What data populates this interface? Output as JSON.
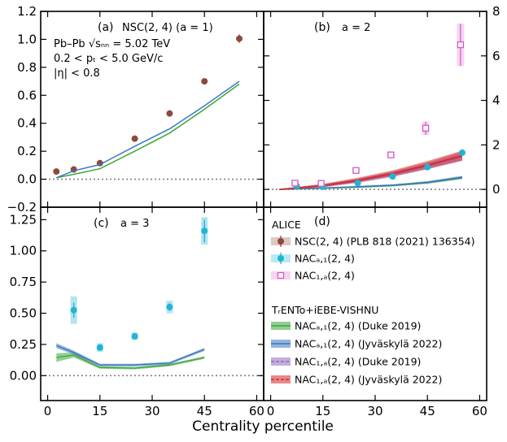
{
  "chart_data": {
    "type": "scatter",
    "xlabel": "Centrality percentile",
    "xlim": [
      -2,
      62
    ],
    "xticks": [
      0,
      15,
      30,
      45,
      60
    ],
    "colors": {
      "data_nsc": "#8b4a3a",
      "data_nac_a1": "#1fb5d3",
      "data_nac_1a": "#d957c8",
      "duke_a1": "#3aa63a",
      "jyv_a1": "#3b78c0",
      "duke_1a": "#9467bd",
      "jyv_1a": "#d62728",
      "zero_line": "#808080"
    },
    "panels": [
      {
        "id": "a",
        "label": "(a)",
        "title": "NSC(2, 4) (a = 1)",
        "ylim": [
          -0.2,
          1.2
        ],
        "yticks": [
          -0.2,
          0.0,
          0.2,
          0.4,
          0.6,
          0.8,
          1.0,
          1.2
        ],
        "ytick_labels": [
          "−0.2",
          "0.0",
          "0.2",
          "0.4",
          "0.6",
          "0.8",
          "1.0",
          "1.2"
        ],
        "info": [
          "Pb–Pb √sₙₙ = 5.02 TeV",
          "0.2 < pₜ < 5.0 GeV/c",
          "|η| < 0.8"
        ],
        "series": [
          {
            "name": "NSC(2, 4) data",
            "kind": "points",
            "color_key": "data_nsc",
            "x": [
              2.5,
              7.5,
              15,
              25,
              35,
              45,
              55
            ],
            "y": [
              0.055,
              0.07,
              0.115,
              0.29,
              0.47,
              0.7,
              1.005
            ],
            "err": [
              0,
              0,
              0,
              0,
              0,
              0,
              0.03
            ]
          },
          {
            "name": "Duke 2019",
            "kind": "line",
            "color_key": "duke_a1",
            "x": [
              2.5,
              7.5,
              15,
              25,
              35,
              45,
              55
            ],
            "y": [
              0.01,
              0.035,
              0.075,
              0.2,
              0.33,
              0.5,
              0.68
            ]
          },
          {
            "name": "Jyväskylä 2022",
            "kind": "line",
            "color_key": "jyv_a1",
            "x": [
              2.5,
              7.5,
              15,
              25,
              35,
              45,
              55
            ],
            "y": [
              0.01,
              0.06,
              0.105,
              0.235,
              0.36,
              0.525,
              0.7
            ]
          }
        ]
      },
      {
        "id": "b",
        "label": "(b)",
        "title": "a = 2",
        "ylim": [
          -0.8,
          8
        ],
        "yticks": [
          0,
          2,
          4,
          6,
          8
        ],
        "ytick_labels": [
          "0",
          "2",
          "4",
          "6",
          "8"
        ],
        "series": [
          {
            "name": "NAC(a,1)(2, 4) data",
            "kind": "points",
            "color_key": "data_nac_a1",
            "x": [
              7.5,
              15,
              25,
              35,
              45,
              55
            ],
            "y": [
              0.15,
              0.12,
              0.28,
              0.58,
              1.0,
              1.65
            ],
            "err": [
              0.04,
              0.04,
              0.05,
              0.07,
              0.09,
              0.12
            ]
          },
          {
            "name": "NAC(1,a)(2, 4) data",
            "kind": "squares",
            "color_key": "data_nac_1a",
            "x": [
              7.0,
              14.5,
              24.5,
              34.5,
              44.5,
              54.5
            ],
            "y": [
              0.28,
              0.27,
              0.85,
              1.55,
              2.75,
              6.5
            ],
            "err": [
              0.08,
              0.07,
              0.12,
              0.15,
              0.3,
              0.95
            ]
          },
          {
            "name": "NAC(a,1) Duke 2019",
            "kind": "band",
            "color_key": "duke_a1",
            "x": [
              2.5,
              7.5,
              15,
              25,
              35,
              45,
              55
            ],
            "y": [
              0.0,
              0.02,
              0.05,
              0.1,
              0.17,
              0.3,
              0.52
            ],
            "w": [
              0.03,
              0.03,
              0.03,
              0.04,
              0.04,
              0.05,
              0.06
            ]
          },
          {
            "name": "NAC(a,1) Jyväskylä 2022",
            "kind": "band",
            "color_key": "jyv_a1",
            "x": [
              2.5,
              7.5,
              15,
              25,
              35,
              45,
              55
            ],
            "y": [
              0.0,
              0.03,
              0.06,
              0.12,
              0.19,
              0.32,
              0.55
            ],
            "w": [
              0.03,
              0.03,
              0.03,
              0.04,
              0.04,
              0.05,
              0.06
            ]
          },
          {
            "name": "NAC(1,a) Duke 2019",
            "kind": "band",
            "color_key": "duke_1a",
            "x": [
              2.5,
              7.5,
              15,
              25,
              35,
              45,
              55
            ],
            "y": [
              0.0,
              0.06,
              0.15,
              0.38,
              0.68,
              1.05,
              1.48
            ],
            "w": [
              0.03,
              0.04,
              0.06,
              0.09,
              0.12,
              0.15,
              0.2
            ]
          },
          {
            "name": "NAC(1,a) Jyväskylä 2022",
            "kind": "band",
            "color_key": "jyv_1a",
            "x": [
              2.5,
              7.5,
              15,
              25,
              35,
              45,
              55
            ],
            "y": [
              0.0,
              0.07,
              0.18,
              0.42,
              0.72,
              1.1,
              1.52
            ],
            "w": [
              0.03,
              0.04,
              0.07,
              0.1,
              0.13,
              0.17,
              0.22
            ]
          }
        ]
      },
      {
        "id": "c",
        "label": "(c)",
        "title": "a = 3",
        "ylim": [
          -0.2,
          1.35
        ],
        "yticks": [
          0.0,
          0.25,
          0.5,
          0.75,
          1.0,
          1.25
        ],
        "ytick_labels": [
          "0.00",
          "0.25",
          "0.50",
          "0.75",
          "1.00",
          "1.25"
        ],
        "series": [
          {
            "name": "NAC(a,1)(2, 4) data",
            "kind": "points",
            "color_key": "data_nac_a1",
            "x": [
              7.5,
              15,
              25,
              35,
              45
            ],
            "y": [
              0.525,
              0.225,
              0.315,
              0.55,
              1.16
            ],
            "err": [
              0.06,
              0.02,
              0.02,
              0.03,
              0.09
            ],
            "sys": [
              0.11,
              0.035,
              0.03,
              0.05,
              0.11
            ]
          },
          {
            "name": "NAC(a,1) Duke 2019",
            "kind": "band",
            "color_key": "duke_a1",
            "x": [
              2.5,
              7.5,
              15,
              25,
              35,
              45
            ],
            "y": [
              0.145,
              0.165,
              0.065,
              0.06,
              0.085,
              0.145
            ],
            "w": [
              0.035,
              0.02,
              0.01,
              0.01,
              0.01,
              0.01
            ]
          },
          {
            "name": "NAC(a,1) Jyväskylä 2022",
            "kind": "band",
            "color_key": "jyv_a1",
            "x": [
              2.5,
              7.5,
              15,
              25,
              35,
              45
            ],
            "y": [
              0.24,
              0.185,
              0.085,
              0.085,
              0.1,
              0.21
            ],
            "w": [
              0.02,
              0.015,
              0.01,
              0.01,
              0.01,
              0.012
            ]
          }
        ]
      }
    ],
    "legend": {
      "label": "(d)",
      "group1_title": "ALICE",
      "group2_title": "TᵣENTo+iEBE-VISHNU",
      "entries": [
        {
          "label": "NSC(2, 4) (PLB 818 (2021) 136354)",
          "color_key": "data_nsc",
          "kind": "circle",
          "group": 1
        },
        {
          "label": "NACₐ,₁(2, 4)",
          "color_key": "data_nac_a1",
          "kind": "circle",
          "group": 1
        },
        {
          "label": "NAC₁,ₐ(2, 4)",
          "color_key": "data_nac_1a",
          "kind": "square",
          "group": 1
        },
        {
          "label": "NACₐ,₁(2, 4) (Duke 2019)",
          "color_key": "duke_a1",
          "kind": "band",
          "group": 2
        },
        {
          "label": "NACₐ,₁(2, 4) (Jyväskylä 2022)",
          "color_key": "jyv_a1",
          "kind": "band",
          "group": 2
        },
        {
          "label": "NAC₁,ₐ(2, 4) (Duke 2019)",
          "color_key": "duke_1a",
          "kind": "dashedband",
          "group": 2
        },
        {
          "label": "NAC₁,ₐ(2, 4) (Jyväskylä 2022)",
          "color_key": "jyv_1a",
          "kind": "dashedband",
          "group": 2
        }
      ]
    }
  }
}
